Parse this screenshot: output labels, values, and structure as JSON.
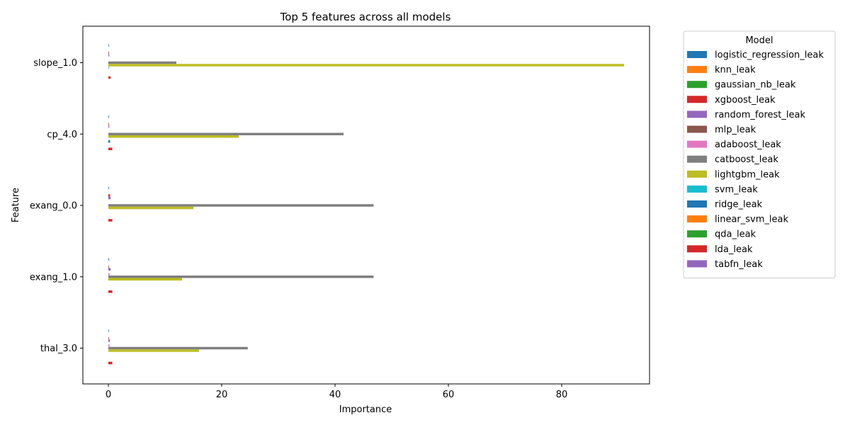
{
  "chart_data": {
    "type": "bar",
    "orientation": "horizontal",
    "title": "Top 5 features across all models",
    "xlabel": "Importance",
    "ylabel": "Feature",
    "xlim": [
      -4.5,
      95.5
    ],
    "xticks": [
      0,
      20,
      40,
      60,
      80
    ],
    "grid": false,
    "legend": {
      "title": "Model",
      "placement": "outside right, top"
    },
    "categories": [
      "slope_1.0",
      "cp_4.0",
      "exang_0.0",
      "exang_1.0",
      "thal_3.0"
    ],
    "series": [
      {
        "name": "logistic_regression_leak",
        "color": "#1f77b4",
        "values": [
          0.05,
          0.02,
          0.1,
          0.12,
          0.1
        ]
      },
      {
        "name": "knn_leak",
        "color": "#ff7f0e",
        "values": [
          0.0,
          0.0,
          0.0,
          0.0,
          0.0
        ]
      },
      {
        "name": "gaussian_nb_leak",
        "color": "#2ca02c",
        "values": [
          0.0,
          0.0,
          0.0,
          0.0,
          0.0
        ]
      },
      {
        "name": "xgboost_leak",
        "color": "#d62728",
        "values": [
          0.1,
          0.05,
          0.3,
          0.05,
          0.1
        ]
      },
      {
        "name": "random_forest_leak",
        "color": "#9467bd",
        "values": [
          0.15,
          0.15,
          0.4,
          0.4,
          0.25
        ]
      },
      {
        "name": "mlp_leak",
        "color": "#8c564b",
        "values": [
          0.0,
          0.0,
          0.0,
          0.0,
          0.0
        ]
      },
      {
        "name": "adaboost_leak",
        "color": "#e377c2",
        "values": [
          0.0,
          0.0,
          0.0,
          0.2,
          0.2
        ]
      },
      {
        "name": "catboost_leak",
        "color": "#7f7f7f",
        "values": [
          12.0,
          41.5,
          46.8,
          46.8,
          24.6
        ]
      },
      {
        "name": "lightgbm_leak",
        "color": "#bcbd22",
        "values": [
          91.0,
          23.0,
          15.0,
          13.0,
          16.0
        ]
      },
      {
        "name": "svm_leak",
        "color": "#17becf",
        "values": [
          0.05,
          0.0,
          0.0,
          0.0,
          0.0
        ]
      },
      {
        "name": "ridge_leak",
        "color": "#1f77b4",
        "values": [
          0.0,
          0.3,
          0.0,
          0.0,
          0.0
        ]
      },
      {
        "name": "linear_svm_leak",
        "color": "#ff7f0e",
        "values": [
          0.0,
          0.0,
          0.0,
          0.0,
          0.0
        ]
      },
      {
        "name": "qda_leak",
        "color": "#2ca02c",
        "values": [
          0.0,
          0.0,
          0.0,
          0.0,
          0.0
        ]
      },
      {
        "name": "lda_leak",
        "color": "#d62728",
        "values": [
          0.4,
          0.7,
          0.7,
          0.7,
          0.7
        ]
      },
      {
        "name": "tabfn_leak",
        "color": "#9467bd",
        "values": [
          0.0,
          0.0,
          0.0,
          0.0,
          0.0
        ]
      }
    ]
  }
}
